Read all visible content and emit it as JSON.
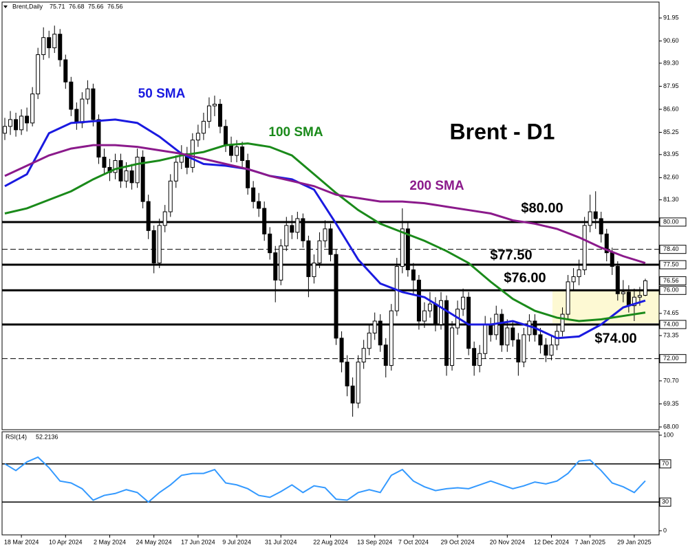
{
  "chart_data": {
    "type": "candlestick",
    "title": "Brent - D1",
    "symbol_label": "Brent,Daily",
    "candles": [
      [
        85.2,
        86.1,
        84.8,
        85.6
      ],
      [
        85.6,
        86.5,
        85.1,
        86.0
      ],
      [
        86.0,
        86.4,
        85.0,
        85.4
      ],
      [
        85.4,
        86.6,
        85.1,
        86.2
      ],
      [
        86.2,
        86.7,
        85.3,
        85.8
      ],
      [
        85.8,
        87.9,
        85.6,
        87.5
      ],
      [
        87.5,
        90.2,
        87.2,
        89.8
      ],
      [
        89.8,
        91.4,
        89.5,
        90.8
      ],
      [
        90.8,
        91.2,
        89.6,
        90.2
      ],
      [
        90.2,
        91.5,
        89.9,
        91.0
      ],
      [
        91.0,
        91.3,
        89.1,
        89.5
      ],
      [
        89.5,
        89.8,
        87.8,
        88.2
      ],
      [
        88.2,
        88.5,
        86.2,
        86.6
      ],
      [
        86.6,
        87.0,
        85.4,
        85.8
      ],
      [
        85.8,
        87.6,
        85.5,
        87.2
      ],
      [
        87.2,
        88.3,
        86.9,
        87.8
      ],
      [
        87.8,
        88.1,
        85.6,
        86.0
      ],
      [
        86.0,
        86.3,
        83.4,
        83.8
      ],
      [
        83.8,
        84.3,
        82.8,
        83.2
      ],
      [
        83.2,
        83.7,
        82.4,
        82.9
      ],
      [
        82.9,
        84.0,
        82.5,
        83.6
      ],
      [
        83.6,
        84.0,
        82.0,
        82.4
      ],
      [
        82.4,
        83.5,
        82.0,
        83.0
      ],
      [
        83.0,
        83.4,
        81.9,
        82.3
      ],
      [
        82.3,
        84.3,
        82.0,
        83.8
      ],
      [
        83.8,
        84.2,
        80.8,
        81.2
      ],
      [
        81.2,
        81.6,
        79.0,
        79.5
      ],
      [
        79.5,
        79.8,
        77.0,
        77.6
      ],
      [
        77.6,
        80.2,
        77.3,
        79.8
      ],
      [
        79.8,
        81.0,
        79.4,
        80.6
      ],
      [
        80.6,
        82.8,
        80.3,
        82.4
      ],
      [
        82.4,
        83.9,
        82.0,
        83.5
      ],
      [
        83.5,
        84.5,
        83.1,
        84.0
      ],
      [
        84.0,
        84.4,
        82.8,
        83.2
      ],
      [
        83.2,
        85.2,
        82.9,
        84.8
      ],
      [
        84.8,
        85.7,
        84.4,
        85.2
      ],
      [
        85.2,
        86.4,
        84.8,
        85.9
      ],
      [
        85.9,
        87.3,
        85.5,
        86.8
      ],
      [
        86.8,
        87.4,
        86.2,
        86.9
      ],
      [
        86.9,
        87.2,
        85.2,
        85.6
      ],
      [
        85.6,
        86.0,
        84.1,
        84.5
      ],
      [
        84.5,
        85.0,
        83.5,
        83.9
      ],
      [
        83.9,
        84.8,
        83.5,
        84.4
      ],
      [
        84.4,
        84.7,
        83.2,
        83.6
      ],
      [
        83.6,
        84.0,
        81.6,
        82.0
      ],
      [
        82.0,
        82.4,
        80.8,
        81.2
      ],
      [
        81.2,
        81.7,
        80.3,
        80.8
      ],
      [
        80.8,
        81.2,
        78.9,
        79.3
      ],
      [
        79.3,
        79.7,
        77.8,
        78.2
      ],
      [
        78.2,
        78.6,
        75.3,
        76.6
      ],
      [
        76.6,
        79.0,
        76.3,
        78.6
      ],
      [
        78.6,
        80.3,
        78.3,
        79.8
      ],
      [
        79.8,
        80.4,
        79.0,
        79.4
      ],
      [
        79.4,
        80.6,
        79.0,
        80.2
      ],
      [
        80.2,
        80.5,
        78.5,
        78.9
      ],
      [
        78.9,
        79.2,
        75.6,
        76.8
      ],
      [
        76.8,
        78.1,
        76.4,
        77.6
      ],
      [
        77.6,
        79.4,
        77.3,
        78.9
      ],
      [
        78.9,
        80.1,
        78.5,
        79.6
      ],
      [
        79.6,
        79.9,
        77.7,
        78.1
      ],
      [
        78.1,
        78.4,
        72.8,
        73.2
      ],
      [
        73.2,
        73.6,
        71.2,
        71.8
      ],
      [
        71.8,
        72.2,
        69.8,
        70.4
      ],
      [
        70.4,
        70.9,
        68.6,
        69.4
      ],
      [
        69.4,
        72.2,
        69.1,
        71.8
      ],
      [
        71.8,
        73.1,
        71.4,
        72.6
      ],
      [
        72.6,
        74.0,
        72.2,
        73.5
      ],
      [
        73.5,
        74.7,
        73.1,
        74.2
      ],
      [
        74.2,
        74.6,
        72.4,
        72.8
      ],
      [
        72.8,
        73.2,
        70.9,
        71.6
      ],
      [
        71.6,
        75.2,
        71.3,
        74.8
      ],
      [
        74.8,
        77.9,
        74.5,
        77.4
      ],
      [
        77.4,
        80.8,
        77.0,
        79.6
      ],
      [
        79.6,
        80.0,
        76.8,
        77.2
      ],
      [
        77.2,
        77.6,
        75.8,
        76.6
      ],
      [
        76.6,
        76.9,
        73.7,
        74.2
      ],
      [
        74.2,
        75.3,
        73.8,
        74.8
      ],
      [
        74.8,
        75.9,
        74.4,
        75.2
      ],
      [
        75.2,
        75.6,
        73.6,
        74.0
      ],
      [
        74.0,
        75.9,
        73.7,
        75.4
      ],
      [
        75.4,
        75.7,
        71.0,
        71.6
      ],
      [
        71.6,
        74.2,
        71.3,
        73.8
      ],
      [
        73.8,
        75.4,
        73.4,
        74.9
      ],
      [
        74.9,
        76.1,
        74.5,
        75.6
      ],
      [
        75.6,
        75.9,
        72.2,
        72.6
      ],
      [
        72.6,
        73.0,
        71.0,
        71.6
      ],
      [
        71.6,
        72.8,
        71.2,
        72.3
      ],
      [
        72.3,
        74.5,
        72.0,
        74.0
      ],
      [
        74.0,
        74.4,
        73.0,
        73.4
      ],
      [
        73.4,
        75.1,
        73.1,
        74.6
      ],
      [
        74.6,
        74.9,
        72.4,
        72.8
      ],
      [
        72.8,
        74.3,
        72.4,
        73.8
      ],
      [
        73.8,
        74.2,
        72.7,
        73.1
      ],
      [
        73.1,
        73.5,
        71.0,
        71.8
      ],
      [
        71.8,
        73.8,
        71.5,
        73.4
      ],
      [
        73.4,
        74.6,
        73.0,
        74.2
      ],
      [
        74.2,
        74.6,
        73.0,
        73.4
      ],
      [
        73.4,
        73.8,
        72.3,
        72.8
      ],
      [
        72.8,
        73.2,
        71.8,
        72.2
      ],
      [
        72.2,
        73.3,
        71.9,
        72.8
      ],
      [
        72.8,
        74.0,
        72.5,
        73.6
      ],
      [
        73.6,
        75.0,
        73.3,
        74.6
      ],
      [
        74.6,
        76.9,
        74.3,
        76.5
      ],
      [
        76.5,
        77.3,
        76.0,
        76.8
      ],
      [
        76.8,
        77.8,
        76.3,
        77.2
      ],
      [
        77.2,
        80.3,
        76.9,
        79.8
      ],
      [
        79.8,
        81.6,
        79.4,
        80.6
      ],
      [
        80.6,
        81.8,
        79.6,
        80.2
      ],
      [
        80.2,
        80.6,
        78.8,
        79.3
      ],
      [
        79.3,
        79.6,
        77.7,
        78.2
      ],
      [
        78.2,
        78.5,
        76.9,
        77.4
      ],
      [
        77.4,
        77.7,
        75.4,
        75.8
      ],
      [
        75.8,
        76.6,
        75.3,
        75.9
      ],
      [
        75.9,
        76.3,
        74.7,
        75.1
      ],
      [
        75.1,
        76.1,
        74.2,
        75.6
      ],
      [
        75.6,
        76.2,
        75.1,
        75.7
      ],
      [
        75.71,
        76.68,
        75.66,
        76.56
      ]
    ],
    "xlim": [
      -0.5,
      118.5
    ],
    "xticks": [
      {
        "value": 3,
        "label": "18 Mar 2024"
      },
      {
        "value": 11,
        "label": "10 Apr 2024"
      },
      {
        "value": 19,
        "label": "2 May 2024"
      },
      {
        "value": 27,
        "label": "24 May 2024"
      },
      {
        "value": 35,
        "label": "17 Jun 2024"
      },
      {
        "value": 42,
        "label": "9 Jul 2024"
      },
      {
        "value": 50,
        "label": "31 Jul 2024"
      },
      {
        "value": 59,
        "label": "22 Aug 2024"
      },
      {
        "value": 67,
        "label": "13 Sep 2024"
      },
      {
        "value": 74,
        "label": "7 Oct 2024"
      },
      {
        "value": 82,
        "label": "29 Oct 2024"
      },
      {
        "value": 91,
        "label": "20 Nov 2024"
      },
      {
        "value": 99,
        "label": "12 Dec 2024"
      },
      {
        "value": 106,
        "label": "7 Jan 2025"
      },
      {
        "value": 114,
        "label": "29 Jan 2025"
      }
    ],
    "ylim": [
      67.84,
      92.88
    ],
    "yticks": [
      {
        "value": 91.95,
        "label": "91.95"
      },
      {
        "value": 90.6,
        "label": "90.60"
      },
      {
        "value": 89.3,
        "label": "89.30"
      },
      {
        "value": 87.95,
        "label": "87.95"
      },
      {
        "value": 86.6,
        "label": "86.60"
      },
      {
        "value": 85.25,
        "label": "85.25"
      },
      {
        "value": 83.95,
        "label": "83.95"
      },
      {
        "value": 82.6,
        "label": "82.60"
      },
      {
        "value": 81.3,
        "label": "81.30"
      },
      {
        "value": 74.65,
        "label": "74.65"
      },
      {
        "value": 73.35,
        "label": "73.35"
      },
      {
        "value": 70.7,
        "label": "70.70"
      },
      {
        "value": 69.35,
        "label": "69.35"
      },
      {
        "value": 68,
        "label": "68.00"
      }
    ],
    "levels": [
      {
        "value": 80,
        "label": "80.00",
        "style": "solid",
        "annotation": "$80.00"
      },
      {
        "value": 78.4,
        "label": "78.40",
        "style": "dashed"
      },
      {
        "value": 77.5,
        "label": "77.50",
        "style": "solid",
        "annotation": "$77.50"
      },
      {
        "value": 76,
        "label": "76.00",
        "style": "solid",
        "annotation": "$76.00"
      },
      {
        "value": 74,
        "label": "74.00",
        "style": "solid",
        "annotation": "$74.00"
      },
      {
        "value": 72,
        "label": "72.00",
        "style": "dashed"
      }
    ],
    "series": [
      {
        "name": "50 SMA",
        "color": "#1a1ae0",
        "x": [
          0,
          4,
          8,
          12,
          16,
          20,
          24,
          28,
          32,
          36,
          40,
          44,
          48,
          52,
          56,
          60,
          64,
          68,
          72,
          76,
          80,
          84,
          88,
          92,
          96,
          100,
          104,
          108,
          112,
          116
        ],
        "values": [
          82.1,
          82.8,
          85.2,
          85.8,
          85.9,
          86.0,
          85.8,
          85.0,
          84.0,
          83.4,
          83.3,
          83.1,
          82.7,
          82.5,
          81.9,
          79.9,
          77.8,
          76.4,
          75.9,
          75.6,
          74.8,
          74.0,
          74.0,
          74.2,
          73.8,
          73.2,
          73.3,
          74.0,
          75.0,
          75.4
        ]
      },
      {
        "name": "100 SMA",
        "color": "#1a8a1a",
        "x": [
          0,
          4,
          8,
          12,
          16,
          20,
          24,
          28,
          32,
          36,
          40,
          44,
          48,
          52,
          56,
          60,
          64,
          68,
          72,
          76,
          80,
          84,
          88,
          92,
          96,
          100,
          104,
          108,
          112,
          116
        ],
        "values": [
          80.5,
          80.8,
          81.3,
          81.8,
          82.5,
          83.1,
          83.4,
          83.6,
          83.9,
          84.1,
          84.5,
          84.6,
          84.4,
          83.9,
          82.8,
          81.7,
          80.7,
          79.9,
          79.4,
          78.9,
          78.3,
          77.6,
          76.5,
          75.5,
          74.8,
          74.4,
          74.2,
          74.3,
          74.5,
          74.7
        ]
      },
      {
        "name": "200 SMA",
        "color": "#8b1a8b",
        "x": [
          0,
          4,
          8,
          12,
          16,
          20,
          24,
          28,
          32,
          36,
          40,
          44,
          48,
          52,
          56,
          60,
          64,
          68,
          72,
          76,
          80,
          84,
          88,
          92,
          96,
          100,
          104,
          108,
          112,
          116
        ],
        "values": [
          82.7,
          83.3,
          83.9,
          84.3,
          84.5,
          84.5,
          84.4,
          84.2,
          84.0,
          83.7,
          83.4,
          83.1,
          82.7,
          82.4,
          82.1,
          81.6,
          81.4,
          81.2,
          81.2,
          81.1,
          80.9,
          80.7,
          80.5,
          80.1,
          79.9,
          79.6,
          79.1,
          78.5,
          78.0,
          77.6
        ]
      }
    ],
    "rsi": {
      "name": "RSI(14)",
      "color": "#3399ff",
      "ylim": [
        0,
        100
      ],
      "yticks": [
        100,
        0
      ],
      "levels": [
        70,
        30
      ],
      "x": [
        0,
        2,
        4,
        6,
        8,
        10,
        12,
        14,
        16,
        18,
        20,
        22,
        24,
        26,
        28,
        30,
        32,
        34,
        36,
        38,
        40,
        42,
        44,
        46,
        48,
        50,
        52,
        54,
        56,
        58,
        60,
        62,
        64,
        66,
        68,
        70,
        72,
        74,
        76,
        78,
        80,
        82,
        84,
        86,
        88,
        90,
        92,
        94,
        96,
        98,
        100,
        102,
        104,
        106,
        108,
        110,
        112,
        114,
        116
      ],
      "values": [
        70,
        63,
        72,
        77,
        66,
        52,
        50,
        44,
        32,
        37,
        39,
        43,
        40,
        30,
        40,
        48,
        58,
        60,
        60,
        64,
        50,
        48,
        44,
        37,
        35,
        41,
        48,
        40,
        47,
        45,
        33,
        32,
        40,
        43,
        40,
        58,
        64,
        52,
        46,
        42,
        44,
        45,
        44,
        48,
        52,
        48,
        44,
        47,
        51,
        49,
        52,
        60,
        73,
        74,
        63,
        50,
        46,
        40,
        52.2136
      ]
    }
  }
}
